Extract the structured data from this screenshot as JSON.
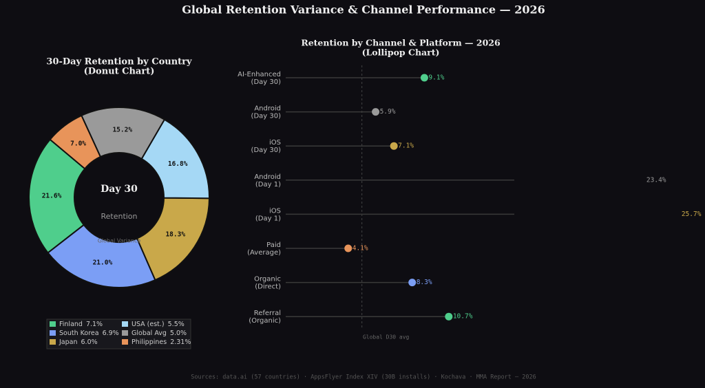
{
  "title": "Global Retention Variance & Channel Performance — 2026",
  "footer": "Sources: data.ai (57 countries) · AppsFlyer Index XIV (30B installs) · Kochava · MMA Report — 2026",
  "chart_data": [
    {
      "type": "donut",
      "title": "30-Day Retention by Country",
      "subtitle": "(Donut Chart)",
      "center_title": "Day 30",
      "center_subtitle": "Retention",
      "center_note": "Global Variance",
      "series": [
        {
          "name": "Finland",
          "color": "#4fce8c",
          "values": [
            7.1
          ],
          "value_labels": [
            "7.1%"
          ],
          "share_labels": [
            "21.6%"
          ]
        },
        {
          "name": "South Korea",
          "color": "#7b9ef5",
          "values": [
            6.9
          ],
          "value_labels": [
            "6.9%"
          ],
          "share_labels": [
            "21.0%"
          ]
        },
        {
          "name": "Japan",
          "color": "#c9a84a",
          "values": [
            6.0
          ],
          "value_labels": [
            "6.0%"
          ],
          "share_labels": [
            "18.3%"
          ]
        },
        {
          "name": "USA (est.)",
          "color": "#a5d8f5",
          "values": [
            5.5
          ],
          "value_labels": [
            "5.5%"
          ],
          "share_labels": [
            "16.8%"
          ]
        },
        {
          "name": "Global Avg",
          "color": "#9a9a9a",
          "values": [
            5.0
          ],
          "value_labels": [
            "5.0%"
          ],
          "share_labels": [
            "15.2%"
          ]
        },
        {
          "name": "Philippines",
          "color": "#e8945a",
          "values": [
            2.31
          ],
          "value_labels": [
            "2.31%"
          ],
          "share_labels": [
            "7.0%"
          ]
        }
      ]
    },
    {
      "type": "lollipop",
      "title": "Retention by Channel & Platform — 2026",
      "subtitle": "(Lollipop Chart)",
      "categories": [
        [
          "AI-Enhanced",
          "(Day 30)"
        ],
        [
          "Android",
          "(Day 30)"
        ],
        [
          "iOS",
          "(Day 30)"
        ],
        [
          "Android",
          "(Day 1)"
        ],
        [
          "iOS",
          "(Day 1)"
        ],
        [
          "Paid",
          "(Average)"
        ],
        [
          "Organic",
          "(Direct)"
        ],
        [
          "Referral",
          "(Organic)"
        ]
      ],
      "values": [
        9.1,
        5.9,
        7.1,
        23.4,
        25.7,
        4.1,
        8.3,
        10.7
      ],
      "value_labels": [
        "9.1%",
        "5.9%",
        "7.1%",
        "23.4%",
        "25.7%",
        "4.1%",
        "8.3%",
        "10.7%"
      ],
      "colors": [
        "#4fce8c",
        "#9a9a9a",
        "#c9a84a",
        "#9a9a9a",
        "#c9a84a",
        "#e8945a",
        "#7b9ef5",
        "#4fce8c"
      ],
      "xlim": [
        0,
        15
      ],
      "reference": {
        "value": 5.0,
        "label": "Global D30 avg"
      }
    }
  ]
}
